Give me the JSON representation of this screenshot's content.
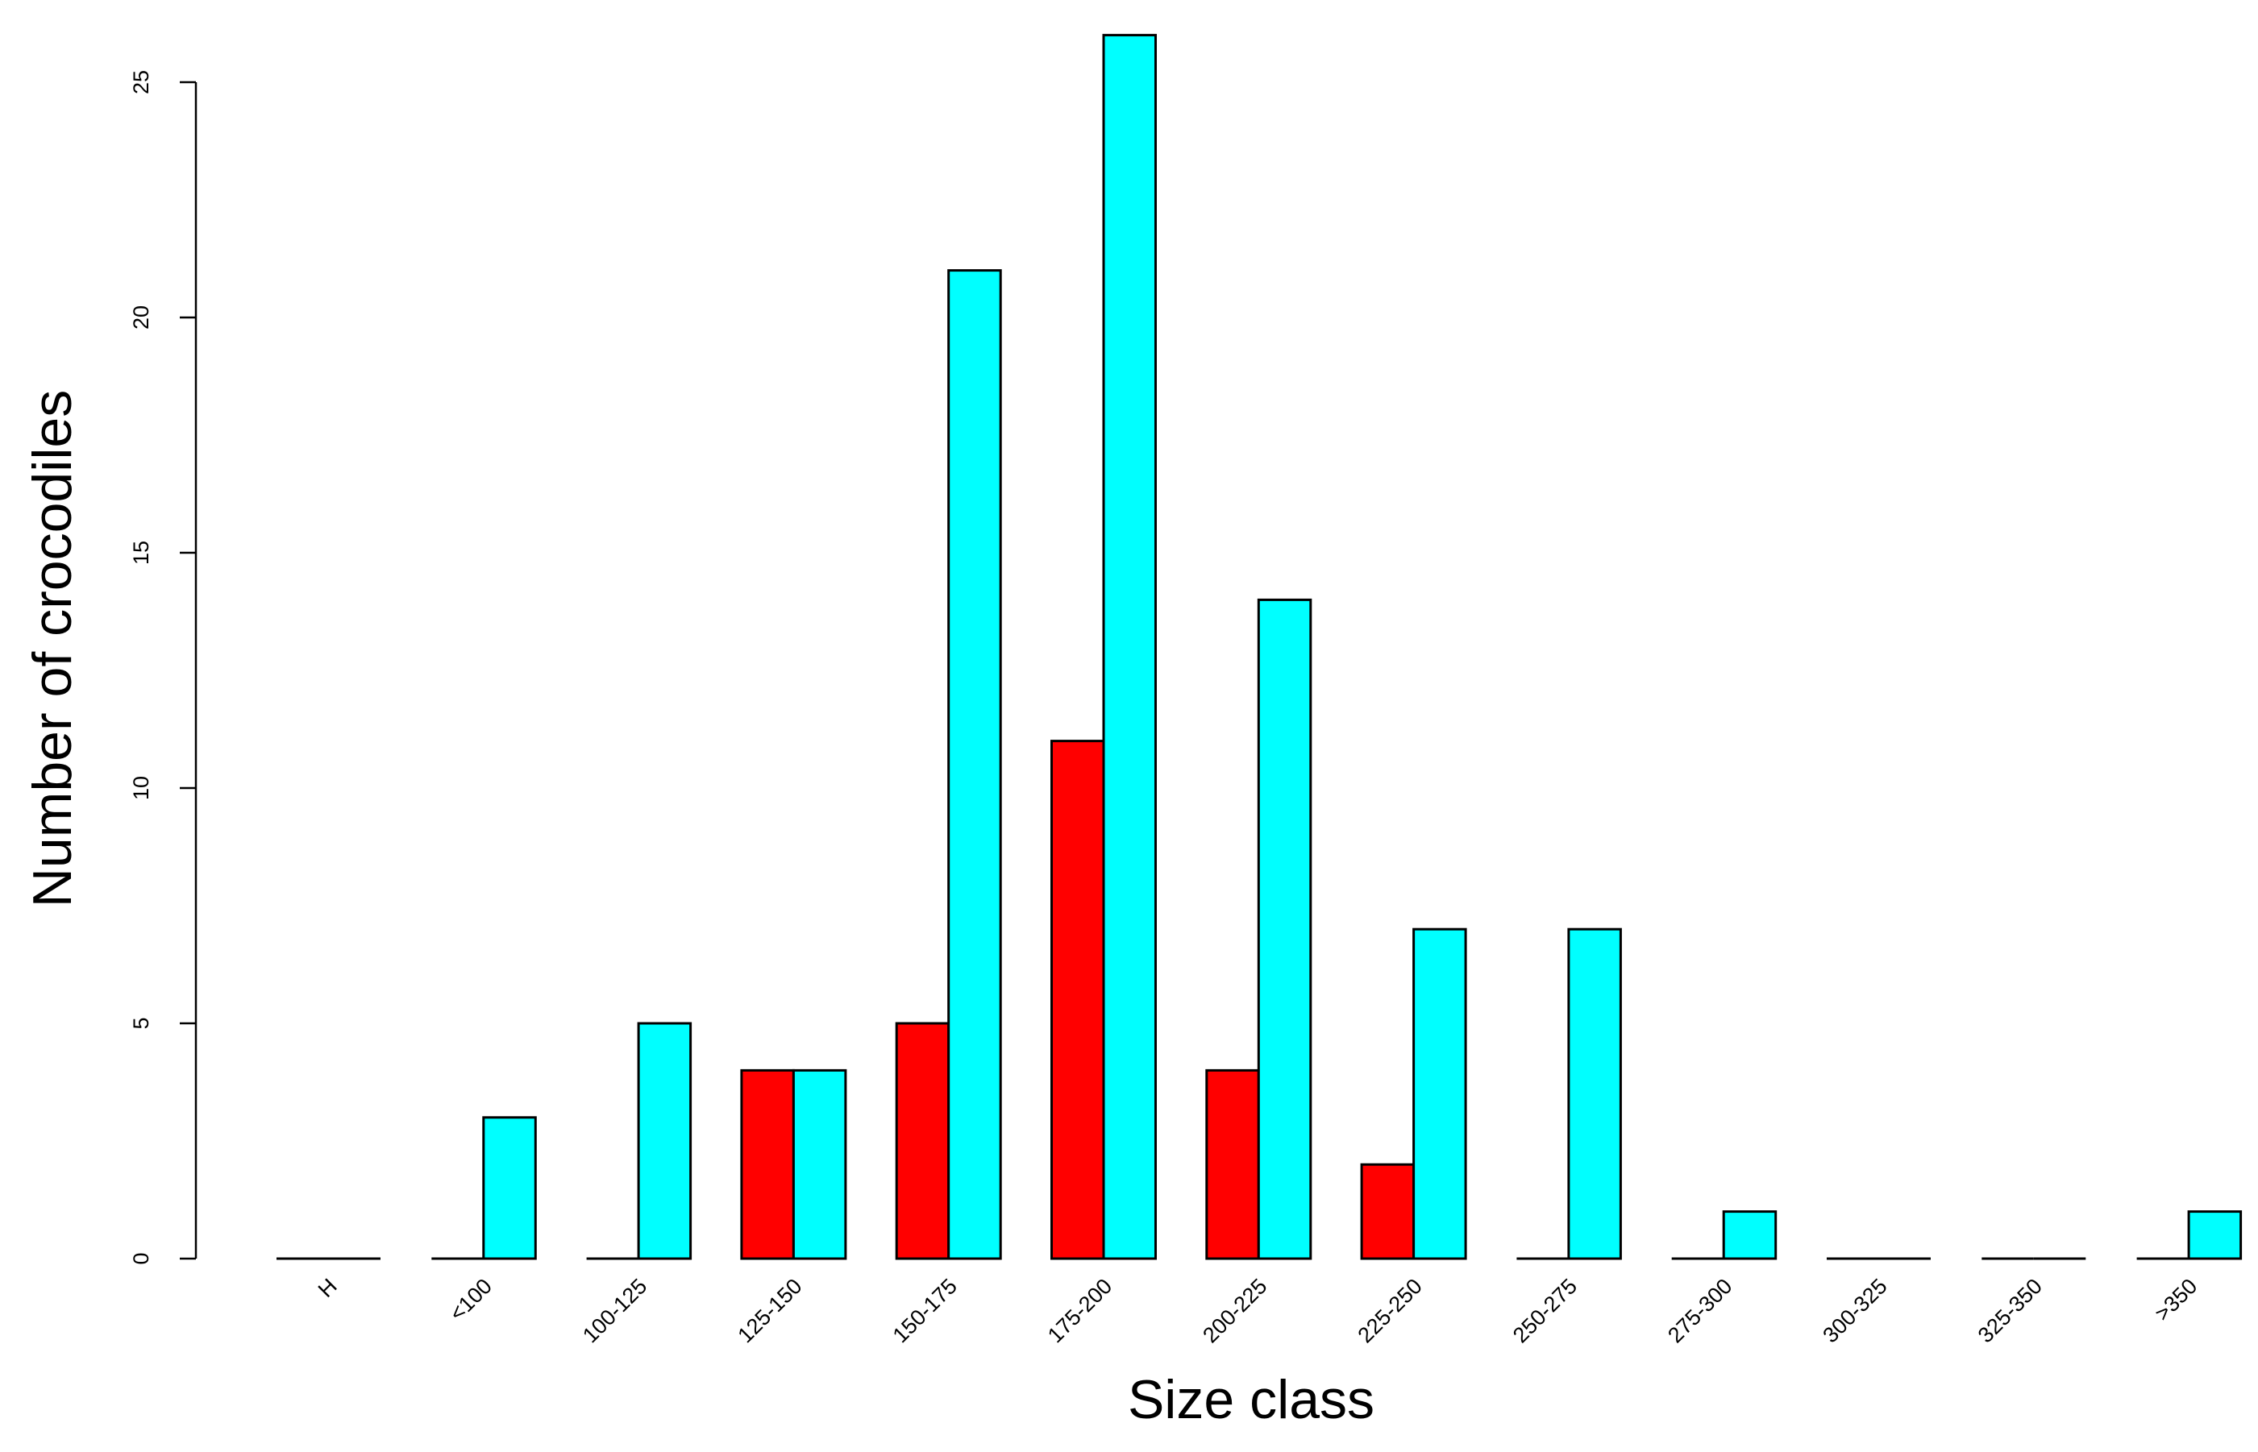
{
  "chart_data": {
    "type": "bar",
    "xlabel": "Size class",
    "ylabel": "Number of crocodiles",
    "categories": [
      "H",
      "<100",
      "100-125",
      "125-150",
      "150-175",
      "175-200",
      "200-225",
      "225-250",
      "250-275",
      "275-300",
      "300-325",
      "325-350",
      ">350"
    ],
    "series": [
      {
        "color": "#ff0000",
        "values": [
          0,
          0,
          0,
          4,
          5,
          11,
          4,
          2,
          0,
          0,
          0,
          0,
          0
        ]
      },
      {
        "color": "#00ffff",
        "values": [
          0,
          3,
          5,
          4,
          21,
          26,
          14,
          7,
          7,
          1,
          0,
          0,
          1
        ]
      }
    ],
    "yticks": [
      0,
      5,
      10,
      15,
      20,
      25
    ],
    "ylim": [
      0,
      26
    ],
    "grid": false,
    "legend": "none"
  }
}
